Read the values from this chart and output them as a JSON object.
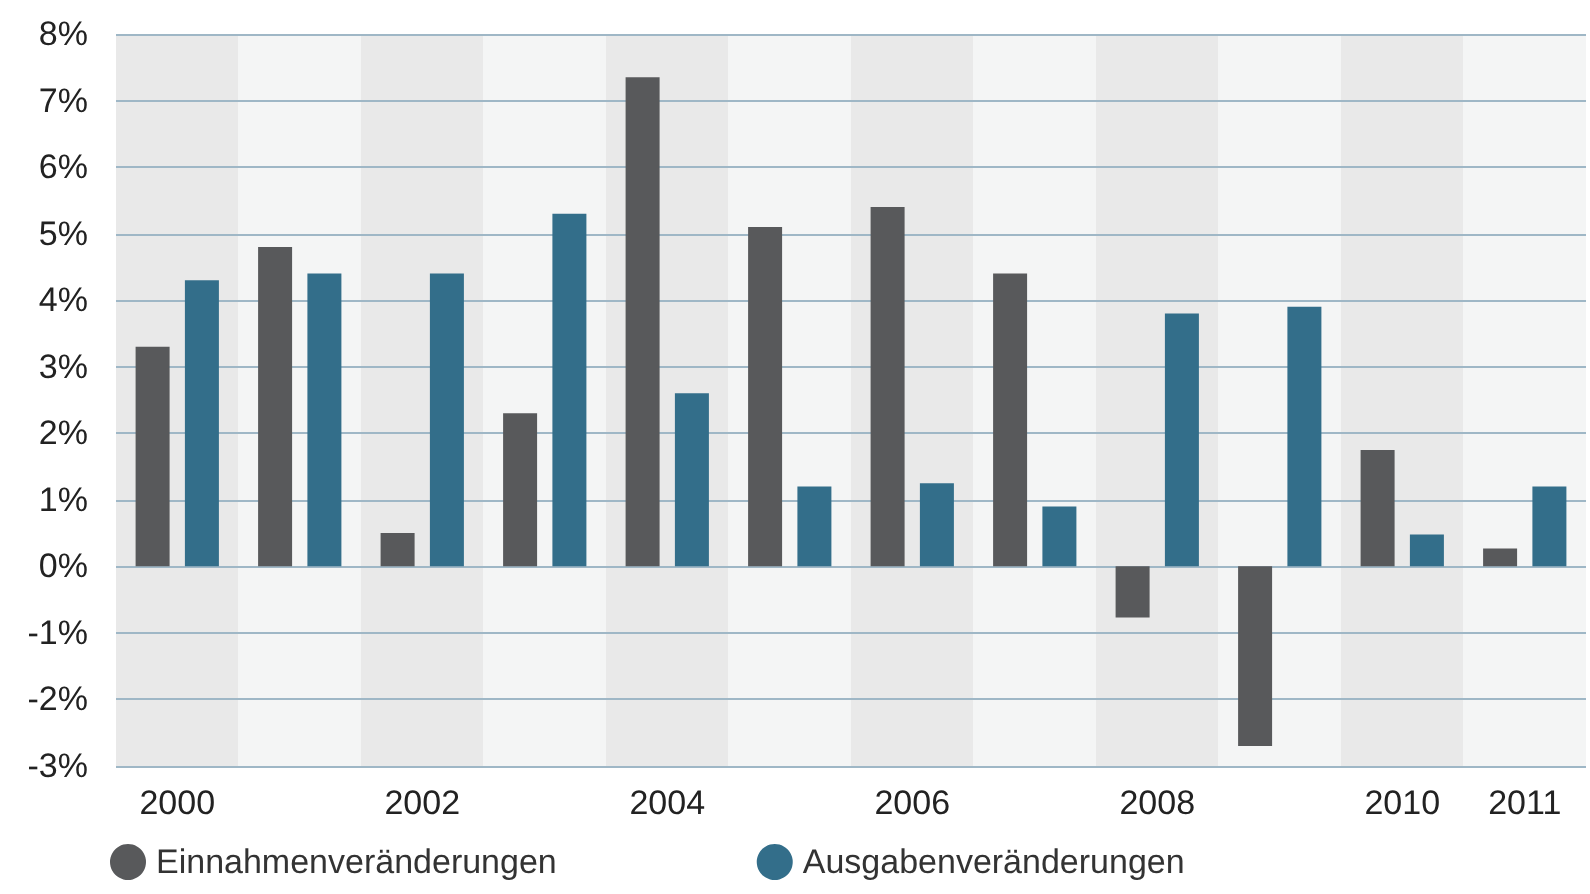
{
  "chart_data": {
    "type": "bar",
    "categories": [
      "2000",
      null,
      "2002",
      null,
      "2004",
      null,
      "2006",
      null,
      "2008",
      null,
      "2010",
      "2011"
    ],
    "series": [
      {
        "name": "Einnahmenveränderungen",
        "color": "#58595b",
        "values": [
          3.3,
          4.8,
          0.5,
          2.3,
          7.35,
          5.1,
          5.4,
          4.4,
          -0.77,
          -2.7,
          1.75,
          0.27
        ]
      },
      {
        "name": "Ausgabenveränderungen",
        "color": "#336e8a",
        "values": [
          4.3,
          4.4,
          4.4,
          5.3,
          2.6,
          1.2,
          1.25,
          0.9,
          3.8,
          3.9,
          0.48,
          1.2
        ]
      }
    ],
    "ylim": [
      -3,
      8
    ],
    "yticks": [
      {
        "value": -3,
        "label": "-3%"
      },
      {
        "value": -2,
        "label": "-2%"
      },
      {
        "value": -1,
        "label": "-1%"
      },
      {
        "value": 0,
        "label": "0%"
      },
      {
        "value": 1,
        "label": "1%"
      },
      {
        "value": 2,
        "label": "2%"
      },
      {
        "value": 3,
        "label": "3%"
      },
      {
        "value": 4,
        "label": "4%"
      },
      {
        "value": 5,
        "label": "5%"
      },
      {
        "value": 6,
        "label": "6%"
      },
      {
        "value": 7,
        "label": "7%"
      },
      {
        "value": 8,
        "label": "8%"
      }
    ],
    "grid": "y",
    "legend": "bottom left"
  }
}
